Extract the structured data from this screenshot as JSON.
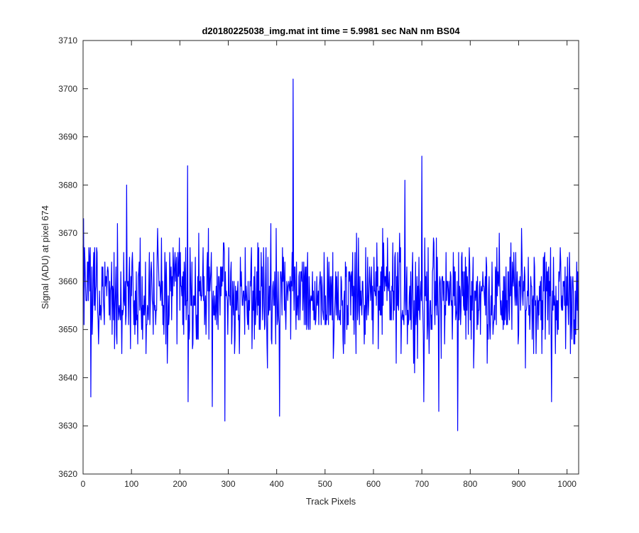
{
  "chart_data": {
    "type": "line",
    "title": "d20180225038_img.mat int time = 5.9981 sec  NaN nm BS04",
    "xlabel": "Track Pixels",
    "ylabel": "Signal (ADU) at pixel 674",
    "xlim": [
      0,
      1024
    ],
    "ylim": [
      3620,
      3710
    ],
    "xticks": [
      0,
      100,
      200,
      300,
      400,
      500,
      600,
      700,
      800,
      900,
      1000
    ],
    "yticks": [
      3620,
      3630,
      3640,
      3650,
      3660,
      3670,
      3680,
      3690,
      3700,
      3710
    ],
    "grid": false,
    "line_color": "#0000ff",
    "n_points": 1024,
    "notable_points": [
      {
        "x": 1,
        "y": 3673
      },
      {
        "x": 16,
        "y": 3636
      },
      {
        "x": 90,
        "y": 3680
      },
      {
        "x": 216,
        "y": 3684
      },
      {
        "x": 217,
        "y": 3635
      },
      {
        "x": 267,
        "y": 3634
      },
      {
        "x": 293,
        "y": 3631
      },
      {
        "x": 406,
        "y": 3632
      },
      {
        "x": 434,
        "y": 3702
      },
      {
        "x": 665,
        "y": 3681
      },
      {
        "x": 700,
        "y": 3686
      },
      {
        "x": 704,
        "y": 3635
      },
      {
        "x": 735,
        "y": 3633
      },
      {
        "x": 774,
        "y": 3629
      },
      {
        "x": 968,
        "y": 3635
      },
      {
        "x": 1023,
        "y": 3650
      }
    ],
    "noise_mean": 3657,
    "noise_amplitude": 9
  }
}
